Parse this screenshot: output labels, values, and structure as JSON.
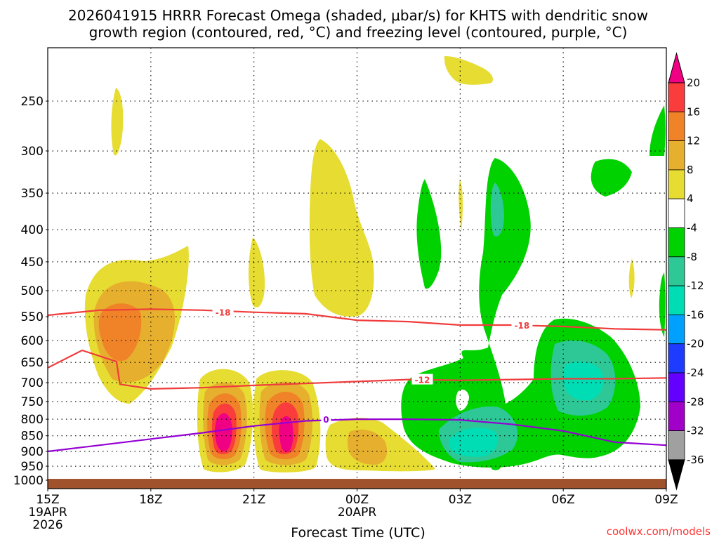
{
  "chart_data": {
    "type": "heatmap",
    "title_line1": "2026041915 HRRR Forecast Omega (shaded, μbar/s) for KHTS with dendritic snow",
    "title_line2": "growth region (contoured, red, °C) and freezing level (contoured, purple, °C)",
    "xlabel": "Forecast Time (UTC)",
    "credit": "coolwx.com/models",
    "x_ticks": [
      {
        "label": "15Z",
        "hour": 0,
        "sub": [
          "19APR",
          "2026"
        ]
      },
      {
        "label": "18Z",
        "hour": 3,
        "sub": []
      },
      {
        "label": "21Z",
        "hour": 6,
        "sub": []
      },
      {
        "label": "00Z",
        "hour": 9,
        "sub": [
          "20APR"
        ]
      },
      {
        "label": "03Z",
        "hour": 12,
        "sub": []
      },
      {
        "label": "06Z",
        "hour": 15,
        "sub": []
      },
      {
        "label": "09Z",
        "hour": 18,
        "sub": []
      }
    ],
    "y_ticks": [
      {
        "label": "250",
        "value": 250
      },
      {
        "label": "300",
        "value": 300
      },
      {
        "label": "350",
        "value": 350
      },
      {
        "label": "400",
        "value": 400
      },
      {
        "label": "450",
        "value": 450
      },
      {
        "label": "500",
        "value": 500
      },
      {
        "label": "550",
        "value": 550
      },
      {
        "label": "600",
        "value": 600
      },
      {
        "label": "650",
        "value": 650
      },
      {
        "label": "700",
        "value": 700
      },
      {
        "label": "750",
        "value": 750
      },
      {
        "label": "800",
        "value": 800
      },
      {
        "label": "850",
        "value": 850
      },
      {
        "label": "900",
        "value": 900
      },
      {
        "label": "950",
        "value": 950
      },
      {
        "label": "1000",
        "value": 1000
      }
    ],
    "y_range_hpa": [
      200,
      1050
    ],
    "x_range_hours": [
      0,
      18
    ],
    "ground_hpa": 995,
    "colorbar": {
      "levels": [
        "-36",
        "-32",
        "-28",
        "-24",
        "-20",
        "-16",
        "-12",
        "-8",
        "-4",
        "4",
        "8",
        "12",
        "16",
        "20"
      ],
      "colors": [
        "#000000",
        "#a0a0a0",
        "#a000c8",
        "#6400ff",
        "#1e3cff",
        "#00a0ff",
        "#00dcb4",
        "#2ec896",
        "#00d200",
        "#ffffff",
        "#e6dc32",
        "#e6af2d",
        "#f08228",
        "#fa3c3c",
        "#f00082"
      ]
    },
    "shaded_colors": {
      "w4": "#e6dc32",
      "w8": "#e6af2d",
      "w12": "#f08228",
      "w16": "#fa3c3c",
      "w20": "#f00082",
      "c4": "#00d200",
      "c8": "#2ec896",
      "c12": "#00dcb4",
      "ground": "#a0522d"
    },
    "contours": [
      {
        "name": "dendritic-minus18",
        "label": "-18",
        "color": "#f03c3c",
        "points": [
          [
            0,
            547
          ],
          [
            1.5,
            537
          ],
          [
            3,
            535
          ],
          [
            4.5,
            537
          ],
          [
            6,
            541
          ],
          [
            7.5,
            544
          ],
          [
            9,
            557
          ],
          [
            10.5,
            560
          ],
          [
            12,
            567
          ],
          [
            13.5,
            567
          ],
          [
            15,
            570
          ],
          [
            16.5,
            575
          ],
          [
            18,
            577
          ]
        ],
        "label_at": [
          [
            5.1,
            541
          ],
          [
            13.8,
            567
          ]
        ]
      },
      {
        "name": "dendritic-minus12",
        "label": "-12",
        "color": "#f03c3c",
        "points": [
          [
            0,
            663
          ],
          [
            1,
            622
          ],
          [
            2,
            648
          ],
          [
            2.1,
            704
          ],
          [
            3,
            716
          ],
          [
            4.5,
            713
          ],
          [
            6,
            707
          ],
          [
            7.5,
            702
          ],
          [
            9,
            697
          ],
          [
            10.5,
            692
          ],
          [
            12,
            694
          ],
          [
            13.5,
            692
          ],
          [
            15,
            690
          ],
          [
            16.5,
            690
          ],
          [
            18,
            688
          ]
        ],
        "label_at": [
          [
            10.9,
            692
          ]
        ]
      },
      {
        "name": "freezing-level-0",
        "label": "0",
        "color": "#9400d3",
        "points": [
          [
            0,
            900
          ],
          [
            1.5,
            880
          ],
          [
            3,
            860
          ],
          [
            4.5,
            841
          ],
          [
            6,
            820
          ],
          [
            7.5,
            805
          ],
          [
            9,
            800
          ],
          [
            10.5,
            800
          ],
          [
            12,
            802
          ],
          [
            13.5,
            815
          ],
          [
            15,
            835
          ],
          [
            16.5,
            870
          ],
          [
            18,
            880
          ]
        ],
        "label_at": [
          [
            8.1,
            800
          ]
        ]
      }
    ]
  }
}
